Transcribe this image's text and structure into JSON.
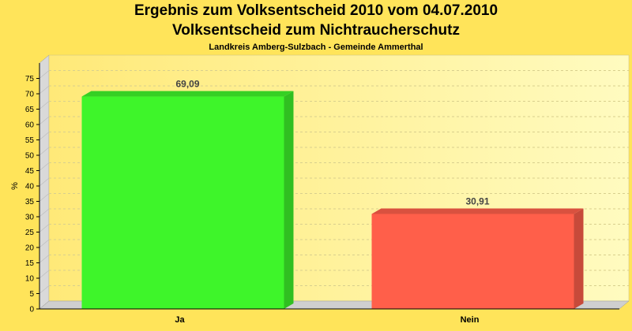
{
  "chart_data": {
    "type": "bar",
    "title": "Ergebnis zum Volksentscheid 2010 vom 04.07.2010",
    "subtitle": "Volksentscheid zum Nichtraucherschutz",
    "subtitle2": "Landkreis Amberg-Sulzbach - Gemeinde Ammerthal",
    "ylabel": "%",
    "ylim": [
      0,
      80
    ],
    "yticks": [
      0,
      5,
      10,
      15,
      20,
      25,
      30,
      35,
      40,
      45,
      50,
      55,
      60,
      65,
      70,
      75
    ],
    "categories": [
      "Ja",
      "Nein"
    ],
    "values": [
      69.09,
      30.91
    ],
    "value_labels": [
      "69,09",
      "30,91"
    ],
    "colors": [
      "#3ef52a",
      "#ff5f4a"
    ],
    "grid": true,
    "legend": "none"
  }
}
